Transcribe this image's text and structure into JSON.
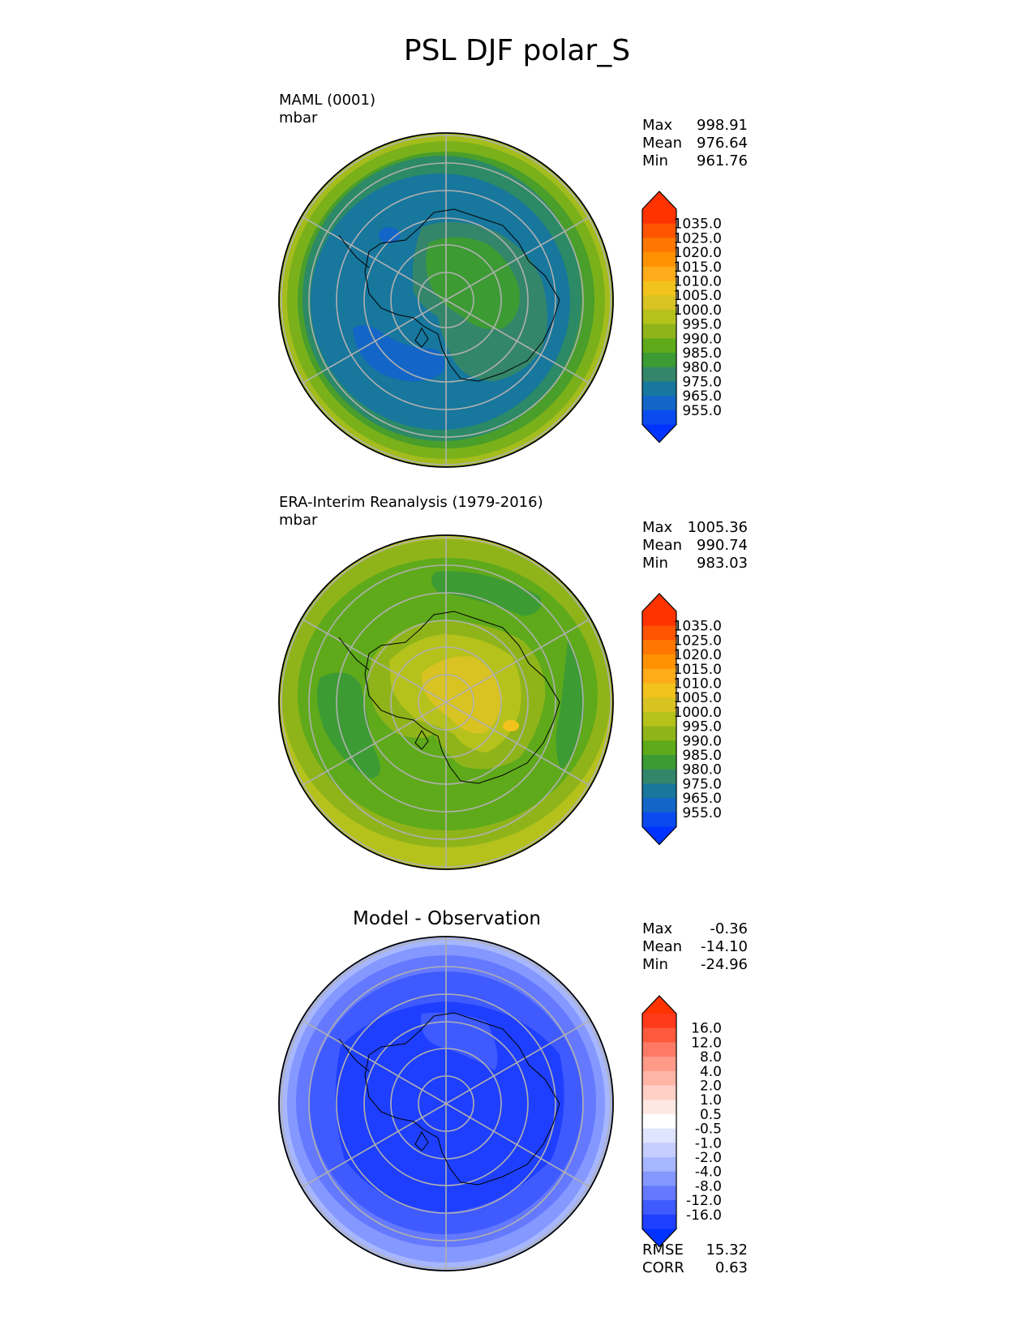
{
  "title": "PSL DJF polar_S",
  "chart_data": [
    {
      "type": "polar-contour-map",
      "name": "test",
      "label_line1": "MAML (0001)",
      "label_line2": "mbar",
      "stats": [
        {
          "name": "Max",
          "value": "998.91"
        },
        {
          "name": "Mean",
          "value": "976.64"
        },
        {
          "name": "Min",
          "value": "961.76"
        }
      ],
      "colorbar": {
        "levels": [
          "1035.0",
          "1025.0",
          "1020.0",
          "1015.0",
          "1010.0",
          "1005.0",
          "1000.0",
          "995.0",
          "990.0",
          "985.0",
          "980.0",
          "975.0",
          "965.0",
          "955.0"
        ],
        "colors": [
          "#ff3300",
          "#ff5500",
          "#ff7700",
          "#ff9200",
          "#ffab1a",
          "#f2c21d",
          "#d8c322",
          "#b5c21b",
          "#8fb41a",
          "#5faa1a",
          "#3d9b34",
          "#34866a",
          "#17779d",
          "#1366c7",
          "#0a4bf0"
        ],
        "top_color": "#ff3300",
        "bottom_color": "#0033ff"
      }
    },
    {
      "type": "polar-contour-map",
      "name": "reference",
      "label_line1": "ERA-Interim Reanalysis (1979-2016)",
      "label_line2": "mbar",
      "stats": [
        {
          "name": "Max",
          "value": "1005.36"
        },
        {
          "name": "Mean",
          "value": "990.74"
        },
        {
          "name": "Min",
          "value": "983.03"
        }
      ],
      "colorbar": {
        "levels": [
          "1035.0",
          "1025.0",
          "1020.0",
          "1015.0",
          "1010.0",
          "1005.0",
          "1000.0",
          "995.0",
          "990.0",
          "985.0",
          "980.0",
          "975.0",
          "965.0",
          "955.0"
        ],
        "colors": [
          "#ff3300",
          "#ff5500",
          "#ff7700",
          "#ff9200",
          "#ffab1a",
          "#f2c21d",
          "#d8c322",
          "#b5c21b",
          "#8fb41a",
          "#5faa1a",
          "#3d9b34",
          "#34866a",
          "#17779d",
          "#1366c7",
          "#0a4bf0"
        ],
        "top_color": "#ff3300",
        "bottom_color": "#0033ff"
      }
    },
    {
      "type": "polar-contour-map",
      "name": "diff",
      "title": "Model - Observation",
      "stats": [
        {
          "name": "Max",
          "value": "-0.36"
        },
        {
          "name": "Mean",
          "value": "-14.10"
        },
        {
          "name": "Min",
          "value": "-24.96"
        }
      ],
      "metrics": [
        {
          "name": "RMSE",
          "value": "15.32"
        },
        {
          "name": "CORR",
          "value": "0.63"
        }
      ],
      "colorbar": {
        "levels": [
          "16.0",
          "12.0",
          "8.0",
          "4.0",
          "2.0",
          "1.0",
          "0.5",
          "-0.5",
          "-1.0",
          "-2.0",
          "-4.0",
          "-8.0",
          "-12.0",
          "-16.0"
        ],
        "colors": [
          "#ff3a1a",
          "#ff5a3c",
          "#ff7a66",
          "#ff9a88",
          "#ffb5a6",
          "#ffd0c6",
          "#ffe8e2",
          "#ffffff",
          "#dfe4ff",
          "#c5ceff",
          "#a7b7ff",
          "#8598ff",
          "#6479ff",
          "#3f5bff",
          "#1e3fff"
        ],
        "top_color": "#ff3300",
        "bottom_color": "#0033ff"
      }
    }
  ]
}
